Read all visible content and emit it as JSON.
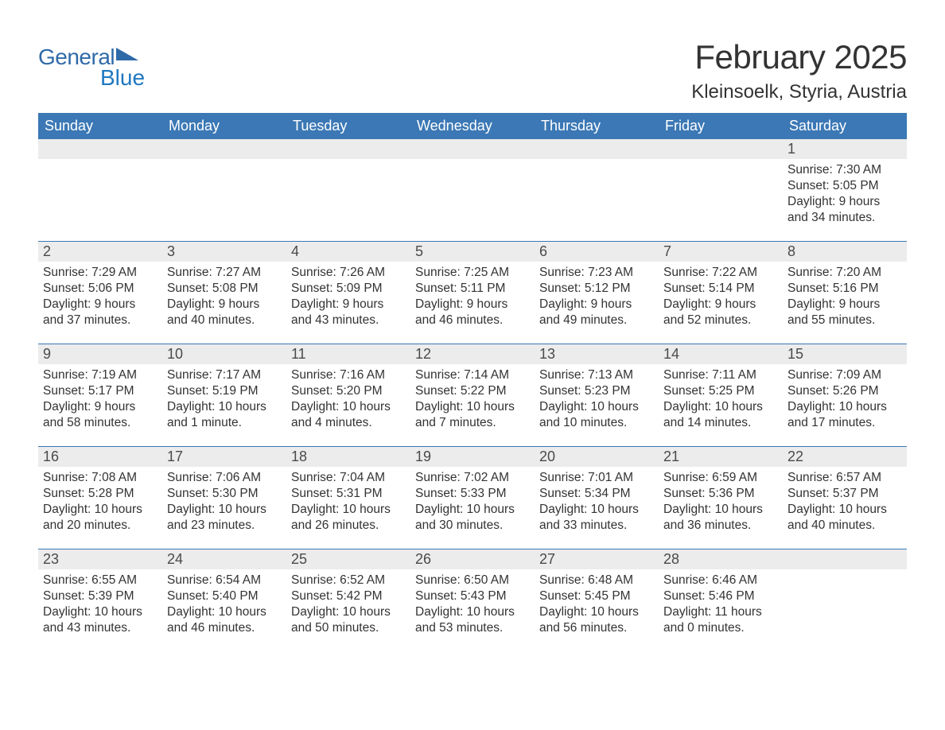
{
  "logo": {
    "text_general": "General",
    "text_blue": "Blue",
    "color_primary": "#2f6aa8",
    "color_accent": "#1f78c1"
  },
  "header": {
    "title": "February 2025",
    "location": "Kleinsoelk, Styria, Austria"
  },
  "colors": {
    "header_bg": "#3b78b5",
    "header_text": "#ffffff",
    "daynum_bg": "#ececec",
    "week_border": "#3b78b5",
    "body_text": "#333333"
  },
  "days_of_week": [
    "Sunday",
    "Monday",
    "Tuesday",
    "Wednesday",
    "Thursday",
    "Friday",
    "Saturday"
  ],
  "weeks": [
    [
      {
        "day": "",
        "sunrise": "",
        "sunset": "",
        "daylight1": "",
        "daylight2": ""
      },
      {
        "day": "",
        "sunrise": "",
        "sunset": "",
        "daylight1": "",
        "daylight2": ""
      },
      {
        "day": "",
        "sunrise": "",
        "sunset": "",
        "daylight1": "",
        "daylight2": ""
      },
      {
        "day": "",
        "sunrise": "",
        "sunset": "",
        "daylight1": "",
        "daylight2": ""
      },
      {
        "day": "",
        "sunrise": "",
        "sunset": "",
        "daylight1": "",
        "daylight2": ""
      },
      {
        "day": "",
        "sunrise": "",
        "sunset": "",
        "daylight1": "",
        "daylight2": ""
      },
      {
        "day": "1",
        "sunrise": "Sunrise: 7:30 AM",
        "sunset": "Sunset: 5:05 PM",
        "daylight1": "Daylight: 9 hours",
        "daylight2": "and 34 minutes."
      }
    ],
    [
      {
        "day": "2",
        "sunrise": "Sunrise: 7:29 AM",
        "sunset": "Sunset: 5:06 PM",
        "daylight1": "Daylight: 9 hours",
        "daylight2": "and 37 minutes."
      },
      {
        "day": "3",
        "sunrise": "Sunrise: 7:27 AM",
        "sunset": "Sunset: 5:08 PM",
        "daylight1": "Daylight: 9 hours",
        "daylight2": "and 40 minutes."
      },
      {
        "day": "4",
        "sunrise": "Sunrise: 7:26 AM",
        "sunset": "Sunset: 5:09 PM",
        "daylight1": "Daylight: 9 hours",
        "daylight2": "and 43 minutes."
      },
      {
        "day": "5",
        "sunrise": "Sunrise: 7:25 AM",
        "sunset": "Sunset: 5:11 PM",
        "daylight1": "Daylight: 9 hours",
        "daylight2": "and 46 minutes."
      },
      {
        "day": "6",
        "sunrise": "Sunrise: 7:23 AM",
        "sunset": "Sunset: 5:12 PM",
        "daylight1": "Daylight: 9 hours",
        "daylight2": "and 49 minutes."
      },
      {
        "day": "7",
        "sunrise": "Sunrise: 7:22 AM",
        "sunset": "Sunset: 5:14 PM",
        "daylight1": "Daylight: 9 hours",
        "daylight2": "and 52 minutes."
      },
      {
        "day": "8",
        "sunrise": "Sunrise: 7:20 AM",
        "sunset": "Sunset: 5:16 PM",
        "daylight1": "Daylight: 9 hours",
        "daylight2": "and 55 minutes."
      }
    ],
    [
      {
        "day": "9",
        "sunrise": "Sunrise: 7:19 AM",
        "sunset": "Sunset: 5:17 PM",
        "daylight1": "Daylight: 9 hours",
        "daylight2": "and 58 minutes."
      },
      {
        "day": "10",
        "sunrise": "Sunrise: 7:17 AM",
        "sunset": "Sunset: 5:19 PM",
        "daylight1": "Daylight: 10 hours",
        "daylight2": "and 1 minute."
      },
      {
        "day": "11",
        "sunrise": "Sunrise: 7:16 AM",
        "sunset": "Sunset: 5:20 PM",
        "daylight1": "Daylight: 10 hours",
        "daylight2": "and 4 minutes."
      },
      {
        "day": "12",
        "sunrise": "Sunrise: 7:14 AM",
        "sunset": "Sunset: 5:22 PM",
        "daylight1": "Daylight: 10 hours",
        "daylight2": "and 7 minutes."
      },
      {
        "day": "13",
        "sunrise": "Sunrise: 7:13 AM",
        "sunset": "Sunset: 5:23 PM",
        "daylight1": "Daylight: 10 hours",
        "daylight2": "and 10 minutes."
      },
      {
        "day": "14",
        "sunrise": "Sunrise: 7:11 AM",
        "sunset": "Sunset: 5:25 PM",
        "daylight1": "Daylight: 10 hours",
        "daylight2": "and 14 minutes."
      },
      {
        "day": "15",
        "sunrise": "Sunrise: 7:09 AM",
        "sunset": "Sunset: 5:26 PM",
        "daylight1": "Daylight: 10 hours",
        "daylight2": "and 17 minutes."
      }
    ],
    [
      {
        "day": "16",
        "sunrise": "Sunrise: 7:08 AM",
        "sunset": "Sunset: 5:28 PM",
        "daylight1": "Daylight: 10 hours",
        "daylight2": "and 20 minutes."
      },
      {
        "day": "17",
        "sunrise": "Sunrise: 7:06 AM",
        "sunset": "Sunset: 5:30 PM",
        "daylight1": "Daylight: 10 hours",
        "daylight2": "and 23 minutes."
      },
      {
        "day": "18",
        "sunrise": "Sunrise: 7:04 AM",
        "sunset": "Sunset: 5:31 PM",
        "daylight1": "Daylight: 10 hours",
        "daylight2": "and 26 minutes."
      },
      {
        "day": "19",
        "sunrise": "Sunrise: 7:02 AM",
        "sunset": "Sunset: 5:33 PM",
        "daylight1": "Daylight: 10 hours",
        "daylight2": "and 30 minutes."
      },
      {
        "day": "20",
        "sunrise": "Sunrise: 7:01 AM",
        "sunset": "Sunset: 5:34 PM",
        "daylight1": "Daylight: 10 hours",
        "daylight2": "and 33 minutes."
      },
      {
        "day": "21",
        "sunrise": "Sunrise: 6:59 AM",
        "sunset": "Sunset: 5:36 PM",
        "daylight1": "Daylight: 10 hours",
        "daylight2": "and 36 minutes."
      },
      {
        "day": "22",
        "sunrise": "Sunrise: 6:57 AM",
        "sunset": "Sunset: 5:37 PM",
        "daylight1": "Daylight: 10 hours",
        "daylight2": "and 40 minutes."
      }
    ],
    [
      {
        "day": "23",
        "sunrise": "Sunrise: 6:55 AM",
        "sunset": "Sunset: 5:39 PM",
        "daylight1": "Daylight: 10 hours",
        "daylight2": "and 43 minutes."
      },
      {
        "day": "24",
        "sunrise": "Sunrise: 6:54 AM",
        "sunset": "Sunset: 5:40 PM",
        "daylight1": "Daylight: 10 hours",
        "daylight2": "and 46 minutes."
      },
      {
        "day": "25",
        "sunrise": "Sunrise: 6:52 AM",
        "sunset": "Sunset: 5:42 PM",
        "daylight1": "Daylight: 10 hours",
        "daylight2": "and 50 minutes."
      },
      {
        "day": "26",
        "sunrise": "Sunrise: 6:50 AM",
        "sunset": "Sunset: 5:43 PM",
        "daylight1": "Daylight: 10 hours",
        "daylight2": "and 53 minutes."
      },
      {
        "day": "27",
        "sunrise": "Sunrise: 6:48 AM",
        "sunset": "Sunset: 5:45 PM",
        "daylight1": "Daylight: 10 hours",
        "daylight2": "and 56 minutes."
      },
      {
        "day": "28",
        "sunrise": "Sunrise: 6:46 AM",
        "sunset": "Sunset: 5:46 PM",
        "daylight1": "Daylight: 11 hours",
        "daylight2": "and 0 minutes."
      },
      {
        "day": "",
        "sunrise": "",
        "sunset": "",
        "daylight1": "",
        "daylight2": ""
      }
    ]
  ]
}
